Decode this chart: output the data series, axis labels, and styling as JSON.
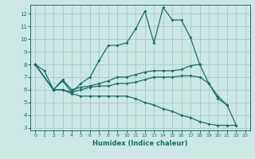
{
  "xlabel": "Humidex (Indice chaleur)",
  "background_color": "#cce8e4",
  "grid_color": "#aacccc",
  "line_color": "#1a6b6b",
  "xlim": [
    -0.5,
    23.5
  ],
  "ylim": [
    2.8,
    12.7
  ],
  "yticks": [
    3,
    4,
    5,
    6,
    7,
    8,
    9,
    10,
    11,
    12
  ],
  "xticks": [
    0,
    1,
    2,
    3,
    4,
    5,
    6,
    7,
    8,
    9,
    10,
    11,
    12,
    13,
    14,
    15,
    16,
    17,
    18,
    19,
    20,
    21,
    22,
    23
  ],
  "series": [
    {
      "x": [
        0,
        1,
        2,
        3,
        4,
        5,
        6,
        7,
        8,
        9,
        10,
        11,
        12,
        13,
        14,
        15,
        16,
        17,
        18
      ],
      "y": [
        8.0,
        7.5,
        6.0,
        6.7,
        5.8,
        6.5,
        7.0,
        8.3,
        9.5,
        9.5,
        9.7,
        10.8,
        12.2,
        9.7,
        12.5,
        11.5,
        11.5,
        10.1,
        8.0
      ]
    },
    {
      "x": [
        0,
        2,
        3,
        4,
        5,
        6,
        7,
        8,
        9,
        10,
        11,
        12,
        13,
        14,
        15,
        16,
        17,
        18,
        19,
        20,
        21
      ],
      "y": [
        8.0,
        6.0,
        6.8,
        6.0,
        6.2,
        6.3,
        6.5,
        6.7,
        7.0,
        7.0,
        7.2,
        7.4,
        7.5,
        7.5,
        7.5,
        7.6,
        7.9,
        8.0,
        6.5,
        5.3,
        4.8
      ]
    },
    {
      "x": [
        0,
        2,
        3,
        4,
        5,
        6,
        7,
        8,
        9,
        10,
        11,
        12,
        13,
        14,
        15,
        16,
        17,
        18,
        19,
        20,
        21,
        22
      ],
      "y": [
        8.0,
        6.0,
        6.0,
        5.8,
        6.0,
        6.2,
        6.3,
        6.3,
        6.5,
        6.5,
        6.6,
        6.8,
        7.0,
        7.0,
        7.0,
        7.1,
        7.1,
        7.0,
        6.5,
        5.5,
        4.8,
        3.2
      ]
    },
    {
      "x": [
        0,
        2,
        3,
        4,
        5,
        6,
        7,
        8,
        9,
        10,
        11,
        12,
        13,
        14,
        15,
        16,
        17,
        18,
        19,
        20,
        21,
        22
      ],
      "y": [
        8.0,
        6.0,
        6.0,
        5.7,
        5.5,
        5.5,
        5.5,
        5.5,
        5.5,
        5.5,
        5.3,
        5.0,
        4.8,
        4.5,
        4.3,
        4.0,
        3.8,
        3.5,
        3.3,
        3.2,
        3.2,
        3.2
      ]
    }
  ]
}
